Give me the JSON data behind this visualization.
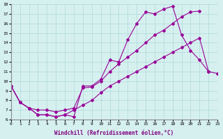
{
  "title": "",
  "xlabel": "Windchill (Refroidissement éolien,°C)",
  "bg_color": "#d6f0f0",
  "grid_color": "#b0d8d8",
  "line_color": "#990099",
  "xlim": [
    0,
    23
  ],
  "ylim": [
    6,
    18
  ],
  "xticks": [
    0,
    1,
    2,
    3,
    4,
    5,
    6,
    7,
    8,
    9,
    10,
    11,
    12,
    13,
    14,
    15,
    16,
    17,
    18,
    19,
    20,
    21,
    22,
    23
  ],
  "yticks": [
    6,
    7,
    8,
    9,
    10,
    11,
    12,
    13,
    14,
    15,
    16,
    17,
    18
  ],
  "s1x": [
    0,
    1,
    2,
    3,
    4,
    5,
    6,
    7,
    8,
    9,
    10,
    11,
    12,
    13,
    14,
    15,
    16,
    17,
    18,
    19,
    20,
    21,
    22
  ],
  "s1y": [
    9.5,
    7.8,
    7.2,
    6.5,
    6.5,
    6.3,
    6.5,
    6.3,
    9.5,
    9.5,
    10.2,
    12.2,
    12.0,
    14.3,
    16.0,
    17.2,
    17.0,
    17.5,
    17.8,
    14.8,
    13.2,
    12.2,
    11.0
  ],
  "s2x": [
    0,
    1,
    2,
    3,
    4,
    5,
    6,
    7,
    8,
    9,
    10,
    11,
    12,
    13,
    14,
    15,
    16,
    17,
    18,
    19,
    20,
    21
  ],
  "s2y": [
    9.5,
    7.8,
    7.2,
    7.0,
    7.0,
    6.8,
    7.0,
    7.2,
    9.3,
    9.4,
    10.0,
    11.0,
    11.8,
    12.5,
    13.2,
    14.0,
    14.8,
    15.3,
    16.0,
    16.7,
    17.2,
    17.3
  ],
  "s3x": [
    0,
    1,
    2,
    3,
    4,
    5,
    6,
    7,
    8,
    9,
    10,
    11,
    12,
    13,
    14,
    15,
    16,
    17,
    18,
    19,
    20,
    21,
    22,
    23
  ],
  "s3y": [
    9.5,
    7.8,
    7.2,
    6.5,
    6.5,
    6.3,
    6.5,
    7.0,
    7.5,
    8.0,
    8.8,
    9.5,
    10.0,
    10.5,
    11.0,
    11.5,
    12.0,
    12.5,
    13.0,
    13.5,
    14.0,
    14.5,
    11.0,
    10.8
  ]
}
